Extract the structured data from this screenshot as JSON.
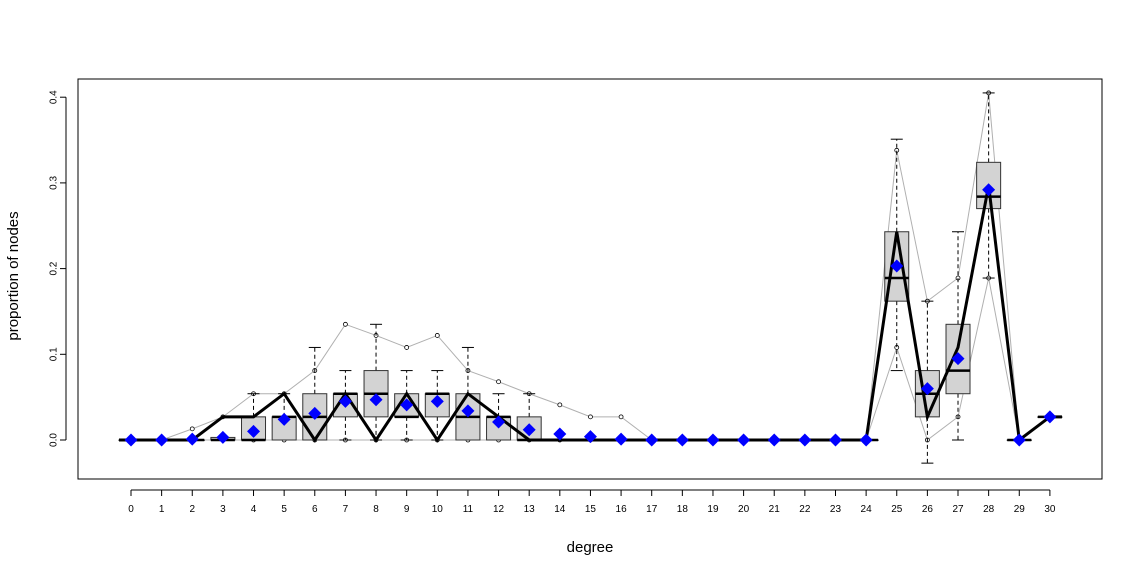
{
  "chart_data": {
    "type": "boxplot",
    "title": "",
    "xlabel": "degree",
    "ylabel": "proportion of nodes",
    "ylim": [
      -0.045,
      0.44
    ],
    "yticks": [
      0.0,
      0.1,
      0.2,
      0.3,
      0.4
    ],
    "ytick_labels": [
      "0.0",
      "0.1",
      "0.2",
      "0.3",
      "0.4"
    ],
    "categories": [
      "0",
      "1",
      "2",
      "3",
      "4",
      "5",
      "6",
      "7",
      "8",
      "9",
      "10",
      "11",
      "12",
      "13",
      "14",
      "15",
      "16",
      "17",
      "18",
      "19",
      "20",
      "21",
      "22",
      "23",
      "24",
      "25",
      "26",
      "27",
      "28",
      "29",
      "30"
    ],
    "grid": false,
    "legend": "none",
    "colors": {
      "box_fill": "#d3d3d3",
      "box_stroke": "#333333",
      "observed_line": "#000000",
      "mean_marker": "#0000ff",
      "quantile_line": "#b0b0b0"
    },
    "boxes": [
      {
        "x": "0",
        "q1": 0,
        "median": 0,
        "q3": 0,
        "lo": 0,
        "hi": 0
      },
      {
        "x": "1",
        "q1": 0,
        "median": 0,
        "q3": 0,
        "lo": 0,
        "hi": 0
      },
      {
        "x": "2",
        "q1": 0,
        "median": 0,
        "q3": 0,
        "lo": 0,
        "hi": 0
      },
      {
        "x": "3",
        "q1": 0,
        "median": 0,
        "q3": 0.003,
        "lo": 0,
        "hi": 0.003
      },
      {
        "x": "4",
        "q1": 0,
        "median": 0,
        "q3": 0.027,
        "lo": 0,
        "hi": 0.054
      },
      {
        "x": "5",
        "q1": 0,
        "median": 0.027,
        "q3": 0.027,
        "lo": 0,
        "hi": 0.054
      },
      {
        "x": "6",
        "q1": 0,
        "median": 0.027,
        "q3": 0.054,
        "lo": 0,
        "hi": 0.108
      },
      {
        "x": "7",
        "q1": 0.027,
        "median": 0.054,
        "q3": 0.054,
        "lo": 0,
        "hi": 0.081
      },
      {
        "x": "8",
        "q1": 0.027,
        "median": 0.054,
        "q3": 0.081,
        "lo": 0,
        "hi": 0.135
      },
      {
        "x": "9",
        "q1": 0.027,
        "median": 0.027,
        "q3": 0.054,
        "lo": 0,
        "hi": 0.081
      },
      {
        "x": "10",
        "q1": 0.027,
        "median": 0.054,
        "q3": 0.054,
        "lo": 0,
        "hi": 0.081
      },
      {
        "x": "11",
        "q1": 0,
        "median": 0.027,
        "q3": 0.054,
        "lo": 0,
        "hi": 0.108
      },
      {
        "x": "12",
        "q1": 0,
        "median": 0.027,
        "q3": 0.027,
        "lo": 0,
        "hi": 0.054
      },
      {
        "x": "13",
        "q1": 0,
        "median": 0,
        "q3": 0.027,
        "lo": 0,
        "hi": 0.054
      },
      {
        "x": "14",
        "q1": 0,
        "median": 0,
        "q3": 0,
        "lo": 0,
        "hi": 0
      },
      {
        "x": "15",
        "q1": 0,
        "median": 0,
        "q3": 0,
        "lo": 0,
        "hi": 0
      },
      {
        "x": "16",
        "q1": 0,
        "median": 0,
        "q3": 0,
        "lo": 0,
        "hi": 0
      },
      {
        "x": "17",
        "q1": 0,
        "median": 0,
        "q3": 0,
        "lo": 0,
        "hi": 0
      },
      {
        "x": "18",
        "q1": 0,
        "median": 0,
        "q3": 0,
        "lo": 0,
        "hi": 0
      },
      {
        "x": "19",
        "q1": 0,
        "median": 0,
        "q3": 0,
        "lo": 0,
        "hi": 0
      },
      {
        "x": "20",
        "q1": 0,
        "median": 0,
        "q3": 0,
        "lo": 0,
        "hi": 0
      },
      {
        "x": "21",
        "q1": 0,
        "median": 0,
        "q3": 0,
        "lo": 0,
        "hi": 0
      },
      {
        "x": "22",
        "q1": 0,
        "median": 0,
        "q3": 0,
        "lo": 0,
        "hi": 0
      },
      {
        "x": "23",
        "q1": 0,
        "median": 0,
        "q3": 0,
        "lo": 0,
        "hi": 0
      },
      {
        "x": "24",
        "q1": 0,
        "median": 0,
        "q3": 0,
        "lo": 0,
        "hi": 0
      },
      {
        "x": "25",
        "q1": 0.162,
        "median": 0.189,
        "q3": 0.243,
        "lo": 0.081,
        "hi": 0.351
      },
      {
        "x": "26",
        "q1": 0.027,
        "median": 0.054,
        "q3": 0.081,
        "lo": -0.027,
        "hi": 0.162
      },
      {
        "x": "27",
        "q1": 0.054,
        "median": 0.081,
        "q3": 0.135,
        "lo": 0,
        "hi": 0.243
      },
      {
        "x": "28",
        "q1": 0.27,
        "median": 0.284,
        "q3": 0.324,
        "lo": 0.189,
        "hi": 0.405
      },
      {
        "x": "29",
        "q1": 0,
        "median": 0,
        "q3": 0,
        "lo": 0,
        "hi": 0
      },
      {
        "x": "30",
        "q1": 0.027,
        "median": 0.027,
        "q3": 0.027,
        "lo": 0.027,
        "hi": 0.027
      }
    ],
    "series": [
      {
        "kind": "observed",
        "values": [
          0,
          0,
          0,
          0.027,
          0.027,
          0.054,
          0,
          0.054,
          0,
          0.054,
          0,
          0.054,
          0.027,
          0,
          0,
          0,
          0,
          0,
          0,
          0,
          0,
          0,
          0,
          0,
          0,
          0.243,
          0.027,
          0.108,
          0.297,
          0,
          0.027
        ]
      },
      {
        "kind": "mean",
        "values": [
          0,
          0,
          0.001,
          0.003,
          0.01,
          0.024,
          0.031,
          0.045,
          0.047,
          0.041,
          0.045,
          0.034,
          0.021,
          0.012,
          0.007,
          0.004,
          0.001,
          0,
          0,
          0,
          0,
          0,
          0,
          0,
          0,
          0.203,
          0.06,
          0.095,
          0.292,
          0,
          0.027
        ]
      },
      {
        "kind": "upper",
        "values": [
          0,
          0,
          0.013,
          0.027,
          0.054,
          0.054,
          0.081,
          0.135,
          0.122,
          0.108,
          0.122,
          0.081,
          0.068,
          0.054,
          0.041,
          0.027,
          0.027,
          0,
          0,
          0,
          0,
          0,
          0,
          0,
          0,
          0.338,
          0.162,
          0.189,
          0.405,
          0,
          0.027
        ]
      },
      {
        "kind": "lower",
        "values": [
          0,
          0,
          0,
          0,
          0,
          0,
          0,
          0,
          0,
          0,
          0,
          0,
          0,
          0,
          0,
          0,
          0,
          0,
          0,
          0,
          0,
          0,
          0,
          0,
          0,
          0.108,
          0,
          0.027,
          0.189,
          0,
          0.027
        ]
      }
    ]
  }
}
